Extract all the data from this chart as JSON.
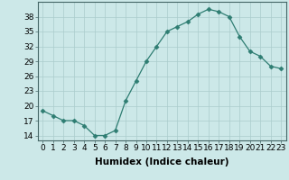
{
  "x": [
    0,
    1,
    2,
    3,
    4,
    5,
    6,
    7,
    8,
    9,
    10,
    11,
    12,
    13,
    14,
    15,
    16,
    17,
    18,
    19,
    20,
    21,
    22,
    23
  ],
  "y": [
    19,
    18,
    17,
    17,
    16,
    14,
    14,
    15,
    21,
    25,
    29,
    32,
    35,
    36,
    37,
    38.5,
    39.5,
    39,
    38,
    34,
    31,
    30,
    28,
    27.5
  ],
  "line_color": "#2e7d72",
  "marker": "D",
  "marker_size": 2.5,
  "bg_color": "#cce8e8",
  "grid_color": "#aacccc",
  "xlabel": "Humidex (Indice chaleur)",
  "xlim": [
    -0.5,
    23.5
  ],
  "ylim": [
    13,
    41
  ],
  "yticks": [
    14,
    17,
    20,
    23,
    26,
    29,
    32,
    35,
    38
  ],
  "xlabel_fontsize": 7.5,
  "tick_fontsize": 6.5
}
